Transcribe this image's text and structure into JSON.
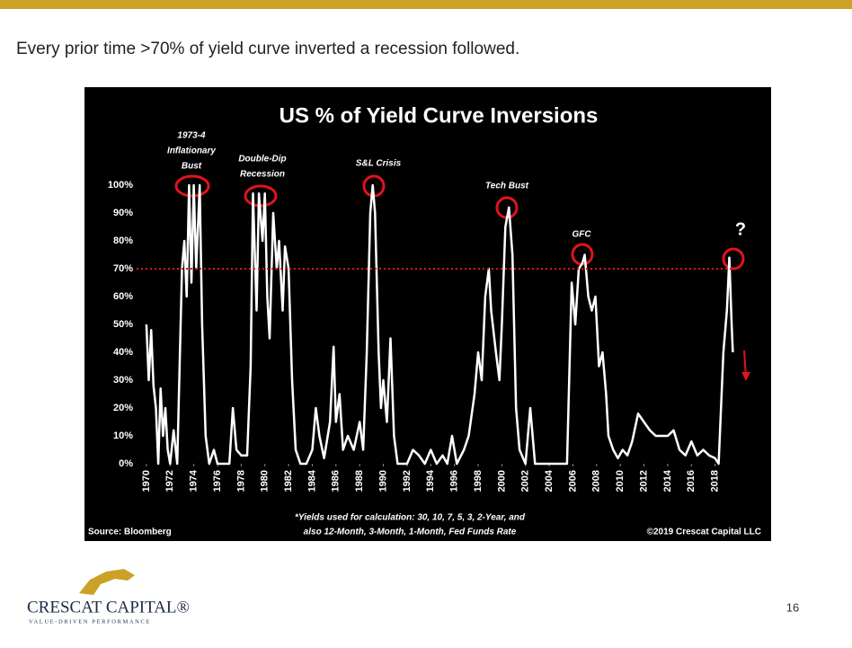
{
  "slide": {
    "heading": "Every prior time >70% of yield curve inverted a recession followed.",
    "page_number": "16",
    "logo_name": "CRESCAT CAPITAL®",
    "logo_tagline": "VALUE-DRIVEN PERFORMANCE"
  },
  "chart_data": {
    "type": "line",
    "title": "US % of Yield Curve Inversions",
    "annotations": [
      "1973-4",
      "Inflationary",
      "Bust",
      "Double-Dip",
      "Recession",
      "S&L Crisis",
      "Tech Bust",
      "GFC",
      "?"
    ],
    "source": "Source: Bloomberg",
    "footnote": [
      "*Yields used for calculation: 30, 10, 7, 5, 3, 2-Year, and",
      "also 12-Month, 3-Month, 1-Month, Fed Funds Rate"
    ],
    "copyright": "©2019 Crescat Capital LLC",
    "color": "#ffffff",
    "threshold": 70,
    "threshold_color": "#e0141b",
    "x": [
      1970.0,
      1970.2,
      1970.4,
      1970.6,
      1970.8,
      1971.0,
      1971.2,
      1971.4,
      1971.6,
      1971.8,
      1972.0,
      1972.3,
      1972.6,
      1973.0,
      1973.2,
      1973.4,
      1973.6,
      1973.8,
      1974.0,
      1974.2,
      1974.5,
      1974.7,
      1975.0,
      1975.3,
      1975.7,
      1976.0,
      1977.0,
      1977.3,
      1977.6,
      1978.0,
      1978.5,
      1978.8,
      1979.0,
      1979.3,
      1979.5,
      1979.8,
      1980.0,
      1980.2,
      1980.4,
      1980.7,
      1981.0,
      1981.2,
      1981.5,
      1981.7,
      1982.0,
      1982.3,
      1982.6,
      1983.0,
      1983.5,
      1984.0,
      1984.3,
      1984.6,
      1985.0,
      1985.5,
      1985.8,
      1986.0,
      1986.3,
      1986.6,
      1987.0,
      1987.5,
      1988.0,
      1988.3,
      1988.6,
      1988.9,
      1989.1,
      1989.3,
      1989.6,
      1989.8,
      1990.0,
      1990.3,
      1990.6,
      1990.9,
      1991.2,
      1992.0,
      1992.5,
      1993.0,
      1993.5,
      1994.0,
      1994.5,
      1995.0,
      1995.4,
      1995.8,
      1996.2,
      1996.8,
      1997.2,
      1997.7,
      1998.0,
      1998.3,
      1998.6,
      1998.9,
      1999.1,
      1999.5,
      1999.8,
      2000.0,
      2000.3,
      2000.6,
      2000.9,
      2001.2,
      2001.5,
      2002.0,
      2002.4,
      2002.8,
      2004.0,
      2005.5,
      2005.9,
      2006.2,
      2006.5,
      2006.8,
      2007.0,
      2007.3,
      2007.6,
      2007.9,
      2008.2,
      2008.5,
      2008.8,
      2009.0,
      2009.4,
      2009.8,
      2010.2,
      2010.6,
      2011.0,
      2011.5,
      2012.0,
      2012.5,
      2013.0,
      2014.0,
      2014.5,
      2015.0,
      2015.5,
      2016.0,
      2016.5,
      2017.0,
      2017.5,
      2018.0,
      2018.3,
      2018.7,
      2019.0,
      2019.2,
      2019.4,
      2019.5
    ],
    "values": [
      50,
      30,
      48,
      28,
      20,
      0,
      27,
      10,
      20,
      5,
      0,
      12,
      0,
      70,
      80,
      60,
      100,
      65,
      100,
      70,
      100,
      50,
      10,
      0,
      5,
      0,
      0,
      20,
      5,
      3,
      3,
      35,
      97,
      55,
      97,
      80,
      97,
      60,
      45,
      90,
      70,
      80,
      55,
      78,
      70,
      30,
      5,
      0,
      0,
      5,
      20,
      10,
      2,
      15,
      42,
      15,
      25,
      5,
      10,
      5,
      15,
      5,
      40,
      90,
      100,
      90,
      40,
      20,
      30,
      15,
      45,
      10,
      0,
      0,
      5,
      3,
      0,
      5,
      0,
      3,
      0,
      10,
      0,
      5,
      10,
      25,
      40,
      30,
      60,
      70,
      55,
      40,
      30,
      50,
      85,
      92,
      75,
      20,
      5,
      0,
      20,
      0,
      0,
      0,
      65,
      50,
      70,
      72,
      75,
      60,
      55,
      60,
      35,
      40,
      25,
      10,
      5,
      2,
      5,
      3,
      8,
      18,
      15,
      12,
      10,
      10,
      12,
      5,
      3,
      8,
      3,
      5,
      3,
      2,
      0,
      40,
      55,
      74,
      50,
      40
    ],
    "xlim": [
      1969.4,
      2020.0
    ],
    "xticks": [
      1970,
      1972,
      1974,
      1976,
      1978,
      1980,
      1982,
      1984,
      1986,
      1988,
      1990,
      1992,
      1994,
      1996,
      1998,
      2000,
      2002,
      2004,
      2006,
      2008,
      2010,
      2012,
      2014,
      2016,
      2018
    ],
    "ylim": [
      0,
      100
    ],
    "yticks": [
      {
        "value": 0,
        "label": "0%"
      },
      {
        "value": 10,
        "label": "10%"
      },
      {
        "value": 20,
        "label": "20%"
      },
      {
        "value": 30,
        "label": "30%"
      },
      {
        "value": 40,
        "label": "40%"
      },
      {
        "value": 50,
        "label": "50%"
      },
      {
        "value": 60,
        "label": "60%"
      },
      {
        "value": 70,
        "label": "70%"
      },
      {
        "value": 80,
        "label": "80%"
      },
      {
        "value": 90,
        "label": "90%"
      },
      {
        "value": 100,
        "label": "100%"
      }
    ]
  }
}
